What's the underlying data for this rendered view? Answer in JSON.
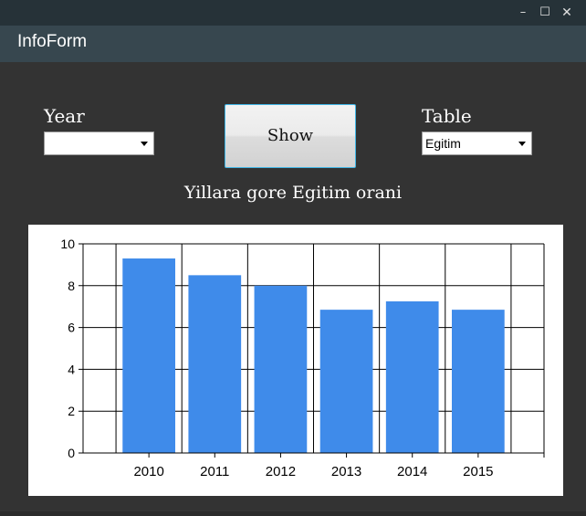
{
  "window": {
    "minimize_glyph": "–",
    "maximize_glyph": "☐",
    "close_glyph": "✕"
  },
  "app": {
    "title": "InfoForm"
  },
  "form": {
    "year_label": "Year",
    "year_value": "",
    "show_label": "Show",
    "table_label": "Table",
    "table_value": "Egitim"
  },
  "chart_title": "Yillara gore Egitim orani",
  "colors": {
    "bar": "#3f8bea",
    "titlebar": "#263238",
    "appbar": "#37474f",
    "background": "#333333"
  },
  "chart_data": {
    "type": "bar",
    "categories": [
      "2010",
      "2011",
      "2012",
      "2013",
      "2014",
      "2015"
    ],
    "values": [
      9.3,
      8.5,
      8.0,
      6.85,
      7.25,
      6.85
    ],
    "ylim": [
      0,
      10
    ],
    "yticks": [
      0,
      2,
      4,
      6,
      8,
      10
    ],
    "grid": true,
    "legend": "none"
  }
}
